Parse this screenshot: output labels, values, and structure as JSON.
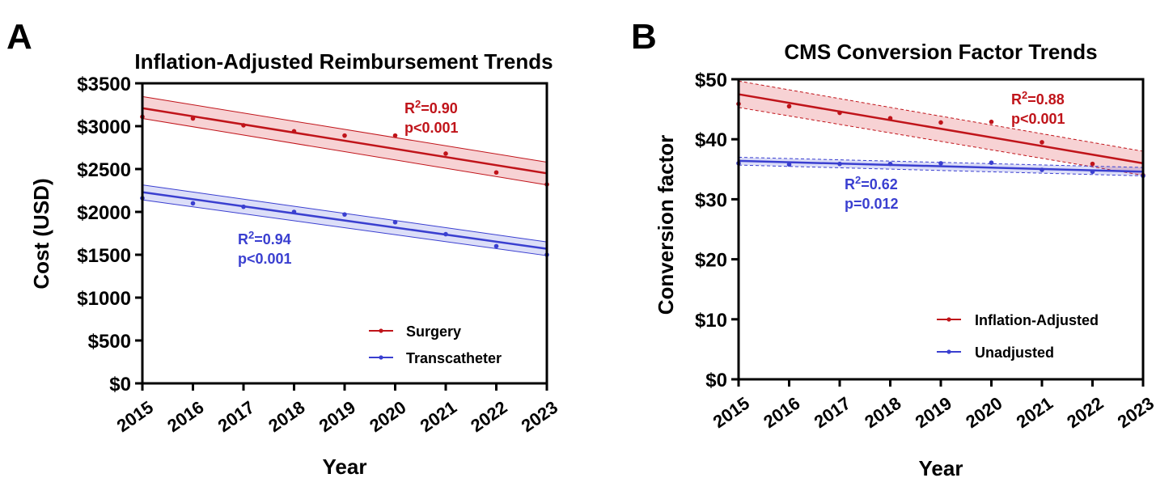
{
  "chart_data": [
    {
      "panel_label": "A",
      "type": "line",
      "title": "Inflation-Adjusted Reimbursement Trends",
      "xlabel": "Year",
      "ylabel": "Cost (USD)",
      "x": [
        2015,
        2016,
        2017,
        2018,
        2019,
        2020,
        2021,
        2022,
        2023
      ],
      "x_tick_labels": [
        "2015",
        "2016",
        "2017",
        "2018",
        "2019",
        "2020",
        "2021",
        "2022",
        "2023"
      ],
      "xlim": [
        2015,
        2023
      ],
      "ylim": [
        0,
        3500
      ],
      "y_ticks": [
        0,
        500,
        1000,
        1500,
        2000,
        2500,
        3000,
        3500
      ],
      "y_tick_labels": [
        "$0",
        "$500",
        "$1000",
        "$1500",
        "$2000",
        "$2500",
        "$3000",
        "$3500"
      ],
      "grid": false,
      "legend_position": "bottom-right",
      "series": [
        {
          "name": "Surgery",
          "color": "#c0141a",
          "values": [
            3110,
            3090,
            3010,
            2940,
            2890,
            2890,
            2680,
            2460,
            2320
          ],
          "fit": {
            "start": 3210,
            "end": 2450,
            "ci_start": [
              3090,
              3345
            ],
            "ci_end": [
              2315,
              2580
            ],
            "ci_dashed": false
          },
          "annotation": {
            "r2": "R²=0.90",
            "p": "p<0.001"
          }
        },
        {
          "name": "Transcatheter",
          "color": "#3a3fd0",
          "values": [
            2160,
            2100,
            2060,
            2000,
            1970,
            1880,
            1740,
            1600,
            1500
          ],
          "fit": {
            "start": 2230,
            "end": 1570,
            "ci_start": [
              2140,
              2315
            ],
            "ci_end": [
              1490,
              1650
            ],
            "ci_dashed": false
          },
          "annotation": {
            "r2": "R²=0.94",
            "p": "p<0.001"
          }
        }
      ]
    },
    {
      "panel_label": "B",
      "type": "line",
      "title": "CMS Conversion Factor Trends",
      "xlabel": "Year",
      "ylabel": "Conversion factor",
      "x": [
        2015,
        2016,
        2017,
        2018,
        2019,
        2020,
        2021,
        2022,
        2023
      ],
      "x_tick_labels": [
        "2015",
        "2016",
        "2017",
        "2018",
        "2019",
        "2020",
        "2021",
        "2022",
        "2023"
      ],
      "xlim": [
        2015,
        2023
      ],
      "ylim": [
        0,
        50
      ],
      "y_ticks": [
        0,
        10,
        20,
        30,
        40,
        50
      ],
      "y_tick_labels": [
        "$0",
        "$10",
        "$20",
        "$30",
        "$40",
        "$50"
      ],
      "grid": false,
      "legend_position": "bottom-right",
      "series": [
        {
          "name": "Inflation-Adjusted",
          "color": "#c0141a",
          "values": [
            45.9,
            45.5,
            44.4,
            43.5,
            42.8,
            42.9,
            39.5,
            35.9,
            34.0
          ],
          "fit": {
            "start": 47.5,
            "end": 36.0,
            "ci_start": [
              45.3,
              49.7
            ],
            "ci_end": [
              34.0,
              38.0
            ],
            "ci_dashed": true
          },
          "annotation": {
            "r2": "R²=0.88",
            "p": "p<0.001"
          }
        },
        {
          "name": "Unadjusted",
          "color": "#3a3fd0",
          "values": [
            36.0,
            35.8,
            35.9,
            35.9,
            36.0,
            36.1,
            34.9,
            34.6,
            33.9
          ],
          "fit": {
            "start": 36.4,
            "end": 34.6,
            "ci_start": [
              35.7,
              37.0
            ],
            "ci_end": [
              33.9,
              35.3
            ],
            "ci_dashed": true
          },
          "annotation": {
            "r2": "R²=0.62",
            "p": "p=0.012"
          }
        }
      ]
    }
  ]
}
